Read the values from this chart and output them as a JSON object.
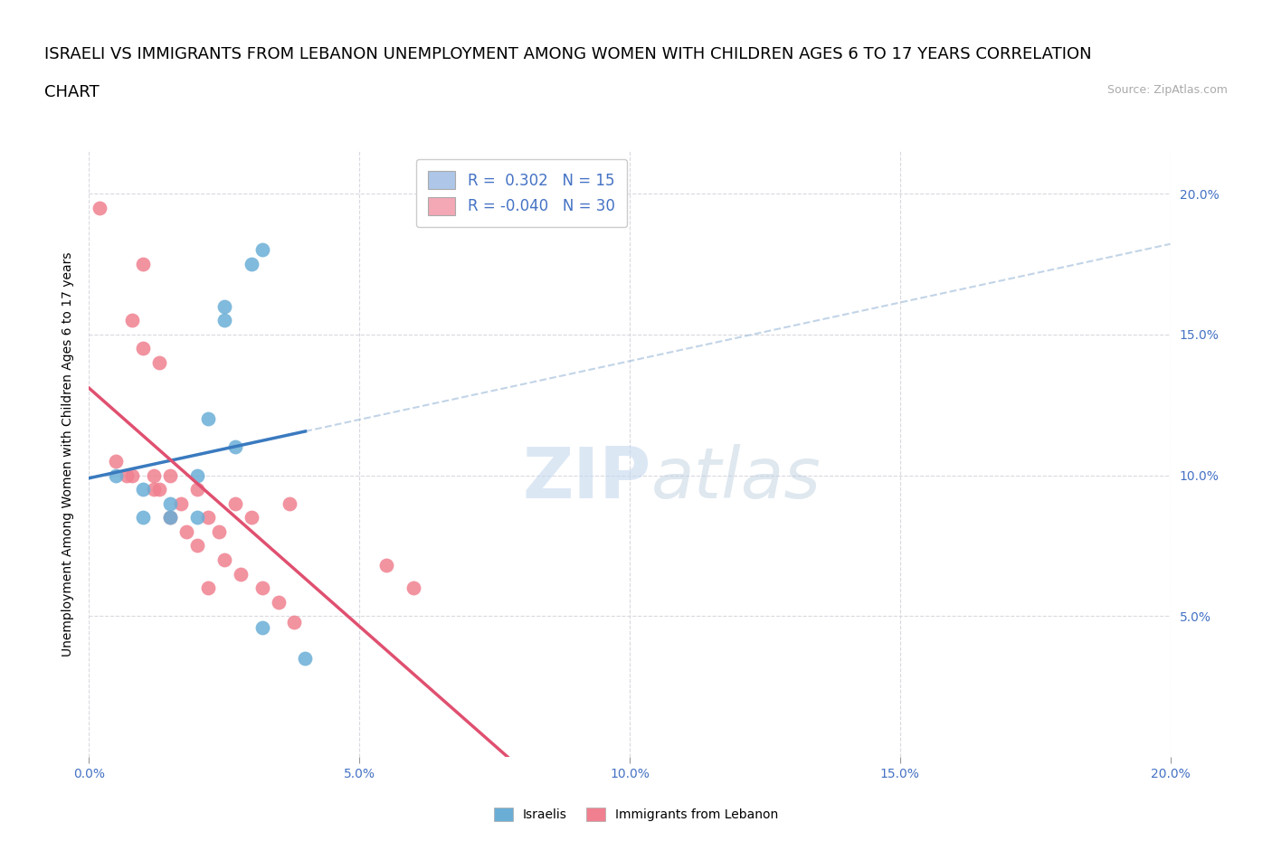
{
  "title_line1": "ISRAELI VS IMMIGRANTS FROM LEBANON UNEMPLOYMENT AMONG WOMEN WITH CHILDREN AGES 6 TO 17 YEARS CORRELATION",
  "title_line2": "CHART",
  "source": "Source: ZipAtlas.com",
  "ylabel": "Unemployment Among Women with Children Ages 6 to 17 years",
  "xlabel": "",
  "xlim": [
    0.0,
    0.2
  ],
  "ylim": [
    0.0,
    0.215
  ],
  "xticks": [
    0.0,
    0.05,
    0.1,
    0.15,
    0.2
  ],
  "yticks": [
    0.05,
    0.1,
    0.15,
    0.2
  ],
  "watermark_part1": "ZIP",
  "watermark_part2": "atlas",
  "legend_entries": [
    {
      "label_r": "R =  0.302",
      "label_n": "N = 15",
      "color": "#aec6e8"
    },
    {
      "label_r": "R = -0.040",
      "label_n": "N = 30",
      "color": "#f4a7b5"
    }
  ],
  "israelis_color": "#6aaed6",
  "lebanon_color": "#f08090",
  "israelis_trend_color": "#3a7abf",
  "lebanon_trend_color": "#e05070",
  "israelis_trend_dash_color": "#9ab8d8",
  "israelis_x": [
    0.005,
    0.01,
    0.01,
    0.015,
    0.015,
    0.02,
    0.02,
    0.022,
    0.025,
    0.025,
    0.027,
    0.03,
    0.032,
    0.032,
    0.04
  ],
  "israelis_y": [
    0.1,
    0.095,
    0.085,
    0.085,
    0.09,
    0.1,
    0.085,
    0.12,
    0.155,
    0.16,
    0.11,
    0.175,
    0.18,
    0.046,
    0.035
  ],
  "lebanon_x": [
    0.002,
    0.005,
    0.007,
    0.008,
    0.008,
    0.01,
    0.01,
    0.012,
    0.012,
    0.013,
    0.013,
    0.015,
    0.015,
    0.017,
    0.018,
    0.02,
    0.02,
    0.022,
    0.022,
    0.024,
    0.025,
    0.027,
    0.028,
    0.03,
    0.032,
    0.035,
    0.037,
    0.038,
    0.055,
    0.06
  ],
  "lebanon_y": [
    0.195,
    0.105,
    0.1,
    0.155,
    0.1,
    0.175,
    0.145,
    0.1,
    0.095,
    0.14,
    0.095,
    0.1,
    0.085,
    0.09,
    0.08,
    0.095,
    0.075,
    0.085,
    0.06,
    0.08,
    0.07,
    0.09,
    0.065,
    0.085,
    0.06,
    0.055,
    0.09,
    0.048,
    0.068,
    0.06
  ],
  "background_color": "#ffffff",
  "grid_color": "#d0d0d8",
  "tick_color": "#4472C4",
  "title_fontsize": 13,
  "axis_label_fontsize": 10,
  "tick_fontsize": 10,
  "legend_fontsize": 12
}
